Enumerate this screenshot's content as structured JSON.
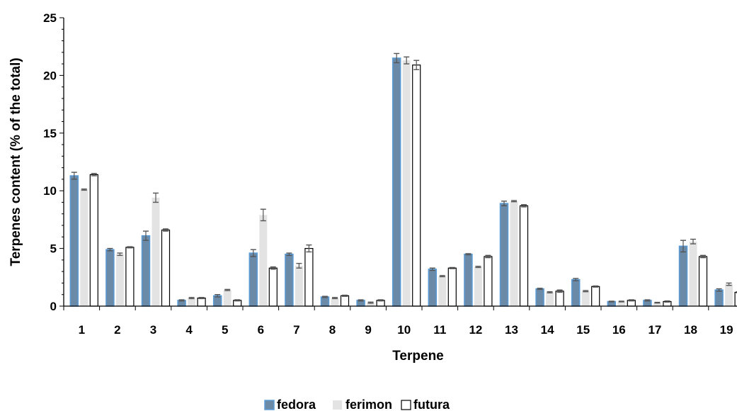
{
  "chart_data": {
    "type": "bar",
    "title": "",
    "xlabel": "Terpene",
    "ylabel": "Terpenes content (% of the total)",
    "ylim": [
      0,
      25
    ],
    "yticks": [
      0,
      5,
      10,
      15,
      20,
      25
    ],
    "grid": false,
    "legend_position": "bottom-center",
    "categories": [
      "1",
      "2",
      "3",
      "4",
      "5",
      "6",
      "7",
      "8",
      "9",
      "10",
      "11",
      "12",
      "13",
      "14",
      "15",
      "16",
      "17",
      "18",
      "19"
    ],
    "series": [
      {
        "name": "fedora",
        "color": "#6a8aa8",
        "values": [
          11.3,
          4.9,
          6.1,
          0.5,
          0.9,
          4.6,
          4.5,
          0.8,
          0.5,
          21.5,
          3.2,
          4.5,
          8.9,
          1.5,
          2.3,
          0.4,
          0.5,
          5.2,
          1.4
        ],
        "errors": [
          0.3,
          0.1,
          0.4,
          0.05,
          0.1,
          0.3,
          0.1,
          0.05,
          0.05,
          0.4,
          0.1,
          0.05,
          0.2,
          0.05,
          0.1,
          0.03,
          0.05,
          0.5,
          0.1
        ]
      },
      {
        "name": "ferimon",
        "color": "#e3e3e3",
        "values": [
          10.1,
          4.5,
          9.4,
          0.7,
          1.4,
          7.9,
          3.5,
          0.7,
          0.3,
          21.3,
          2.6,
          3.4,
          9.1,
          1.2,
          1.3,
          0.4,
          0.3,
          5.6,
          1.9
        ],
        "errors": [
          0.05,
          0.1,
          0.4,
          0.05,
          0.05,
          0.5,
          0.2,
          0.05,
          0.05,
          0.3,
          0.05,
          0.05,
          0.05,
          0.05,
          0.05,
          0.03,
          0.03,
          0.2,
          0.1
        ]
      },
      {
        "name": "futura",
        "color": "#ffffff",
        "values": [
          11.4,
          5.1,
          6.6,
          0.7,
          0.5,
          3.3,
          5.0,
          0.9,
          0.5,
          20.9,
          3.3,
          4.3,
          8.7,
          1.3,
          1.7,
          0.5,
          0.4,
          4.3,
          1.2
        ],
        "errors": [
          0.1,
          0.05,
          0.1,
          0.05,
          0.05,
          0.1,
          0.3,
          0.05,
          0.05,
          0.4,
          0.05,
          0.1,
          0.1,
          0.1,
          0.05,
          0.05,
          0.05,
          0.1,
          0.05
        ]
      }
    ]
  }
}
